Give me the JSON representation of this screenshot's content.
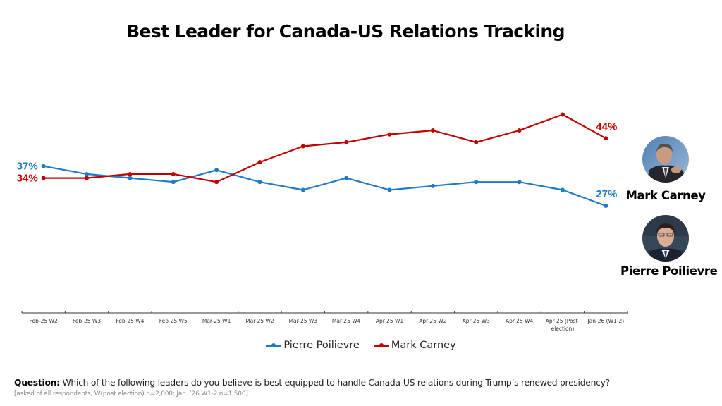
{
  "chart_data": {
    "type": "line",
    "title": "Best Leader for Canada-US Relations Tracking",
    "xlabel": "",
    "ylabel": "",
    "ylim": [
      0,
      60
    ],
    "grid": false,
    "legend_position": "bottom",
    "categories": [
      "Feb-25 W2",
      "Feb-25 W3",
      "Feb-25 W4",
      "Feb-25 W5",
      "Mar-25 W1",
      "Mar-25 W2",
      "Mar-25 W3",
      "Mar-25 W4",
      "Apr-25 W1",
      "Apr-25 W2",
      "Apr-25 W3",
      "Apr-25 W4",
      "Apr-25 (Post-election)",
      "Jan-26 (W1-2)"
    ],
    "category_lines": [
      [
        "Feb-25 W2"
      ],
      [
        "Feb-25 W3"
      ],
      [
        "Feb-25 W4"
      ],
      [
        "Feb-25 W5"
      ],
      [
        "Mar-25 W1"
      ],
      [
        "Mar-25 W2"
      ],
      [
        "Mar-25 W3"
      ],
      [
        "Mar-25 W4"
      ],
      [
        "Apr-25 W1"
      ],
      [
        "Apr-25 W2"
      ],
      [
        "Apr-25 W3"
      ],
      [
        "Apr-25 W4"
      ],
      [
        "Apr-25 (Post-",
        "election)"
      ],
      [
        "Jan-26 (W1-2)"
      ]
    ],
    "series": [
      {
        "name": "Pierre Poilievre",
        "color": "#1f7ac9",
        "values": [
          37,
          35,
          34,
          33,
          36,
          33,
          31,
          34,
          31,
          32,
          33,
          33,
          31,
          27
        ],
        "labels": [
          {
            "index": 0,
            "text": "37%",
            "position": "left"
          },
          {
            "index": 13,
            "text": "27%",
            "position": "above"
          }
        ]
      },
      {
        "name": "Mark Carney",
        "color": "#c00000",
        "values": [
          34,
          34,
          35,
          35,
          33,
          38,
          42,
          43,
          45,
          46,
          43,
          46,
          50,
          44
        ],
        "labels": [
          {
            "index": 0,
            "text": "34%",
            "position": "left"
          },
          {
            "index": 13,
            "text": "44%",
            "position": "above"
          }
        ]
      }
    ]
  },
  "people": [
    {
      "name": "Mark Carney",
      "photo": "mark-carney-photo"
    },
    {
      "name": "Pierre Poilievre",
      "photo": "pierre-poilievre-photo"
    }
  ],
  "footer": {
    "question_label": "Question:",
    "question_text": " Which of the following leaders do you believe is best equipped to handle Canada-US relations during Trump’s renewed presidency?",
    "note": "[asked of all respondents, W(post election) n=2,000; Jan. ’26 W1-2 n=1,500]"
  }
}
